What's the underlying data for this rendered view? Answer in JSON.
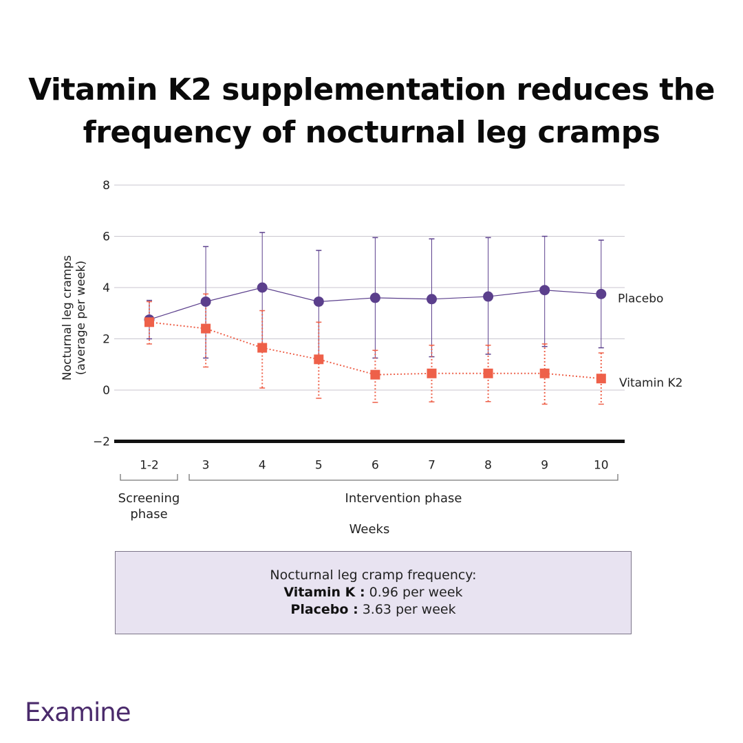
{
  "title": {
    "line1": "Vitamin K2 supplementation reduces the",
    "line2": "frequency of nocturnal leg cramps"
  },
  "chart_data": {
    "type": "line",
    "categories": [
      "1-2",
      "3",
      "4",
      "5",
      "6",
      "7",
      "8",
      "9",
      "10"
    ],
    "xlabel": "Weeks",
    "ylabel_line1": "Nocturnal leg cramps",
    "ylabel_line2": "(average per week)",
    "ylim": [
      -2,
      8
    ],
    "yticks": [
      8,
      6,
      4,
      2,
      0
    ],
    "ytick_labels": [
      "8",
      "6",
      "4",
      "2",
      "0"
    ],
    "ymin_label": "−2",
    "grid": true,
    "phases": [
      {
        "label_line1": "Screening",
        "label_line2": "phase",
        "categories": [
          "1-2"
        ]
      },
      {
        "label_line1": "Intervention phase",
        "label_line2": "",
        "categories": [
          "3",
          "4",
          "5",
          "6",
          "7",
          "8",
          "9",
          "10"
        ]
      }
    ],
    "series": [
      {
        "name": "Placebo",
        "color": "#5b3f8c",
        "marker": "circle",
        "line_style": "solid",
        "values": [
          2.75,
          3.45,
          4.0,
          3.45,
          3.6,
          3.55,
          3.65,
          3.9,
          3.75
        ],
        "err_low": [
          2.0,
          1.25,
          1.8,
          1.3,
          1.25,
          1.3,
          1.4,
          1.7,
          1.65
        ],
        "err_high": [
          3.5,
          5.6,
          6.15,
          5.45,
          5.95,
          5.9,
          5.95,
          6.0,
          5.85
        ]
      },
      {
        "name": "Vitamin K2",
        "color": "#ee6049",
        "marker": "square",
        "line_style": "dotted",
        "values": [
          2.65,
          2.4,
          1.65,
          1.2,
          0.6,
          0.65,
          0.65,
          0.65,
          0.45
        ],
        "err_low": [
          1.8,
          0.9,
          0.08,
          -0.32,
          -0.48,
          -0.46,
          -0.45,
          -0.55,
          -0.55
        ],
        "err_high": [
          3.45,
          3.75,
          3.1,
          2.65,
          1.55,
          1.75,
          1.75,
          1.8,
          1.45
        ]
      }
    ]
  },
  "summary": {
    "heading": "Nocturnal leg cramp frequency:",
    "vitk_label": "Vitamin K :",
    "vitk_value": "0.96 per week",
    "placebo_label": "Placebo :",
    "placebo_value": "3.63 per week"
  },
  "brand": {
    "name": "Examine",
    "color": "#4a2a6b"
  }
}
